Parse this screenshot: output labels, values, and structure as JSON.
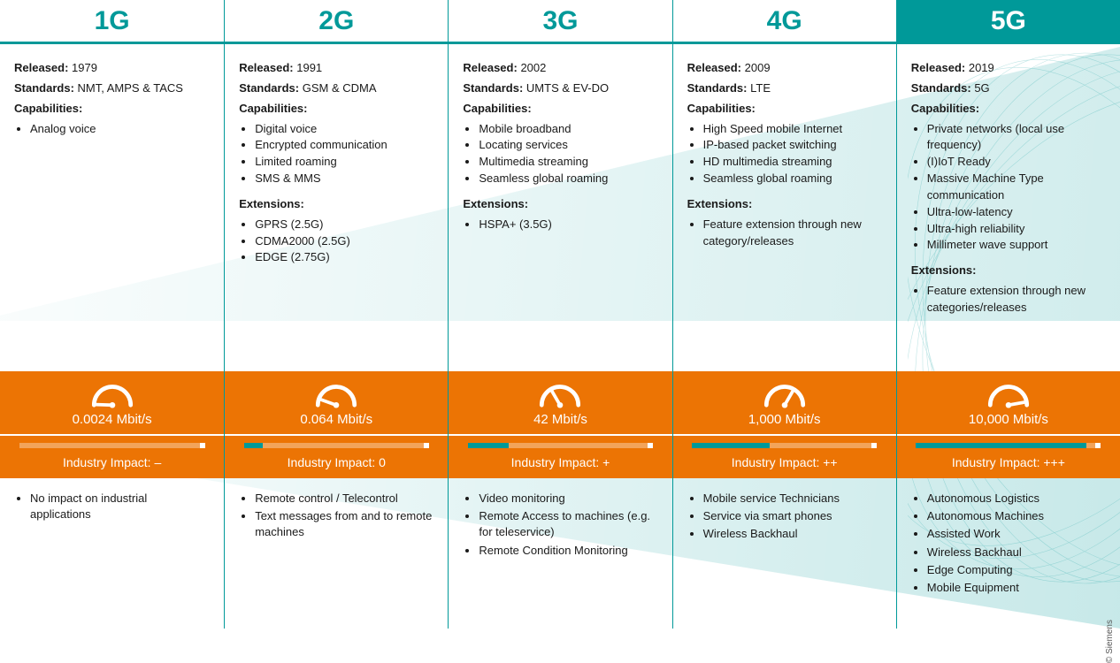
{
  "colors": {
    "teal": "#009999",
    "orange": "#ec7404",
    "white": "#ffffff",
    "text": "#1a1a1a"
  },
  "labels": {
    "released": "Released:",
    "standards": "Standards:",
    "capabilities": "Capabilities:",
    "extensions": "Extensions:",
    "impact_prefix": "Industry Impact: "
  },
  "copyright": "© Siemens",
  "generations": [
    {
      "title": "1G",
      "highlight": false,
      "released": "1979",
      "standards": "NMT, AMPS & TACS",
      "capabilities": [
        "Analog voice"
      ],
      "extensions": [],
      "speed": "0.0024 Mbit/s",
      "gauge_angle": -88,
      "impact": "–",
      "progress_pct": 0,
      "applications": [
        "No impact on industrial applications"
      ]
    },
    {
      "title": "2G",
      "highlight": false,
      "released": "1991",
      "standards": "GSM & CDMA",
      "capabilities": [
        "Digital voice",
        "Encrypted communication",
        "Limited roaming",
        "SMS & MMS"
      ],
      "extensions": [
        "GPRS (2.5G)",
        "CDMA2000 (2.5G)",
        "EDGE (2.75G)"
      ],
      "speed": "0.064 Mbit/s",
      "gauge_angle": -70,
      "impact": "0",
      "progress_pct": 10,
      "applications": [
        "Remote control / Telecontrol",
        "Text messages from and to remote machines"
      ]
    },
    {
      "title": "3G",
      "highlight": false,
      "released": "2002",
      "standards": "UMTS & EV-DO",
      "capabilities": [
        "Mobile broadband",
        "Locating services",
        "Multimedia streaming",
        "Seamless global roaming"
      ],
      "extensions": [
        "HSPA+ (3.5G)"
      ],
      "speed": "42 Mbit/s",
      "gauge_angle": -30,
      "impact": "+",
      "progress_pct": 22,
      "applications": [
        "Video monitoring",
        "Remote Access to machines (e.g. for teleservice)",
        "Remote Condition Monitoring"
      ]
    },
    {
      "title": "4G",
      "highlight": false,
      "released": "2009",
      "standards": "LTE",
      "capabilities": [
        "High Speed mobile Internet",
        "IP-based packet switching",
        "HD multimedia streaming",
        "Seamless global roaming"
      ],
      "extensions": [
        "Feature extension through new category/releases"
      ],
      "speed": "1,000 Mbit/s",
      "gauge_angle": 30,
      "impact": "++",
      "progress_pct": 42,
      "applications": [
        "Mobile service Technicians",
        "Service via smart phones",
        "Wireless Backhaul"
      ]
    },
    {
      "title": "5G",
      "highlight": true,
      "released": "2019",
      "standards": "5G",
      "capabilities": [
        "Private networks (local use frequency)",
        "(I)IoT Ready",
        "Massive Machine Type communication",
        "Ultra-low-latency",
        "Ultra-high reliability",
        "Millimeter wave support"
      ],
      "extensions": [
        "Feature extension through new categories/releases"
      ],
      "speed": "10,000 Mbit/s",
      "gauge_angle": 80,
      "impact": "+++",
      "progress_pct": 92,
      "applications": [
        "Autonomous Logistics",
        "Autonomous Machines",
        "Assisted Work",
        "Wireless Backhaul",
        "Edge Computing",
        "Mobile Equipment"
      ]
    }
  ]
}
